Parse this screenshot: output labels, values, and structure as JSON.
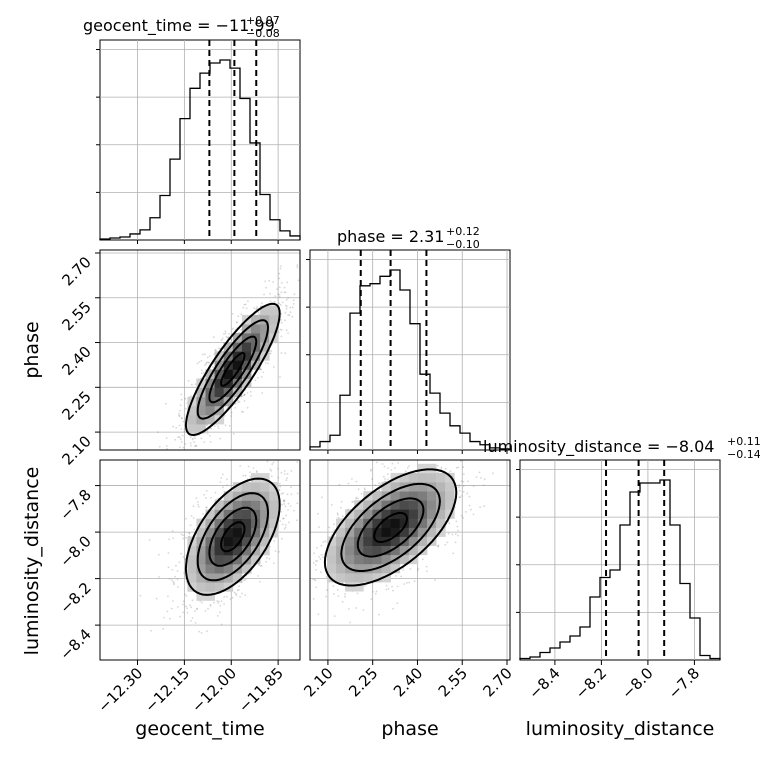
{
  "chart_data": {
    "type": "corner",
    "parameters": [
      {
        "name": "geocent_time",
        "label": "geocent_time",
        "title_main": "geocent_time = −11.99",
        "title_sup": "+0.07",
        "title_sub": "−0.08",
        "median": -11.99,
        "q16": -12.07,
        "q84": -11.92,
        "range": [
          -12.42,
          -11.78
        ],
        "ticks": [
          -12.3,
          -12.15,
          -12.0,
          -11.85
        ],
        "tick_labels": [
          "−12.30",
          "−12.15",
          "−12.00",
          "−11.85"
        ],
        "hist_bins": [
          -12.42,
          -12.388,
          -12.356,
          -12.324,
          -12.292,
          -12.26,
          -12.228,
          -12.196,
          -12.164,
          -12.132,
          -12.1,
          -12.068,
          -12.036,
          -12.004,
          -11.972,
          -11.94,
          -11.908,
          -11.876,
          -11.844,
          -11.812,
          -11.78
        ],
        "hist_counts": [
          1,
          2,
          3,
          6,
          10,
          22,
          44,
          80,
          120,
          150,
          165,
          175,
          178,
          170,
          140,
          96,
          45,
          20,
          9,
          4
        ]
      },
      {
        "name": "phase",
        "label": "phase",
        "title_main": "phase = 2.31",
        "title_sup": "+0.12",
        "title_sub": "−0.10",
        "median": 2.31,
        "q16": 2.21,
        "q84": 2.43,
        "range": [
          2.04,
          2.71
        ],
        "ticks": [
          2.1,
          2.25,
          2.4,
          2.55,
          2.7
        ],
        "tick_labels": [
          "2.10",
          "2.25",
          "2.40",
          "2.55",
          "2.70"
        ],
        "hist_bins": [
          2.04,
          2.0735,
          2.107,
          2.1405,
          2.174,
          2.2075,
          2.241,
          2.2745,
          2.308,
          2.3415,
          2.375,
          2.4085,
          2.442,
          2.4755,
          2.509,
          2.5425,
          2.576,
          2.6095,
          2.643,
          2.6765,
          2.71
        ],
        "hist_counts": [
          3,
          8,
          14,
          52,
          130,
          156,
          158,
          165,
          171,
          152,
          120,
          72,
          54,
          35,
          23,
          16,
          8,
          5,
          2,
          1
        ]
      },
      {
        "name": "luminosity_distance",
        "label": "luminosity_distance",
        "title_main": "luminosity_distance = −8.04",
        "title_sup": "+0.11",
        "title_sub": "−0.14",
        "median": -8.04,
        "q16": -8.18,
        "q84": -7.93,
        "range": [
          -8.55,
          -7.69
        ],
        "ticks": [
          -8.4,
          -8.2,
          -8.0,
          -7.8
        ],
        "tick_labels": [
          "−8.4",
          "−8.2",
          "−8.0",
          "−7.8"
        ],
        "hist_bins": [
          -8.55,
          -8.507,
          -8.464,
          -8.421,
          -8.378,
          -8.335,
          -8.292,
          -8.249,
          -8.206,
          -8.163,
          -8.12,
          -8.077,
          -8.034,
          -7.991,
          -7.948,
          -7.905,
          -7.862,
          -7.819,
          -7.776,
          -7.733,
          -7.69
        ],
        "hist_counts": [
          1,
          2,
          5,
          8,
          12,
          16,
          22,
          42,
          55,
          60,
          90,
          112,
          118,
          118,
          120,
          90,
          51,
          28,
          3,
          1
        ]
      }
    ],
    "pairs": [
      {
        "x": "geocent_time",
        "y": "phase",
        "rho": 0.85,
        "peak": [
          -11.995,
          2.31
        ]
      },
      {
        "x": "geocent_time",
        "y": "luminosity_distance",
        "rho": 0.55,
        "peak": [
          -11.995,
          -8.02
        ]
      },
      {
        "x": "phase",
        "y": "luminosity_distance",
        "rho": 0.6,
        "peak": [
          2.31,
          -7.98
        ]
      }
    ],
    "grid": true,
    "quantiles": [
      0.16,
      0.5,
      0.84
    ]
  }
}
